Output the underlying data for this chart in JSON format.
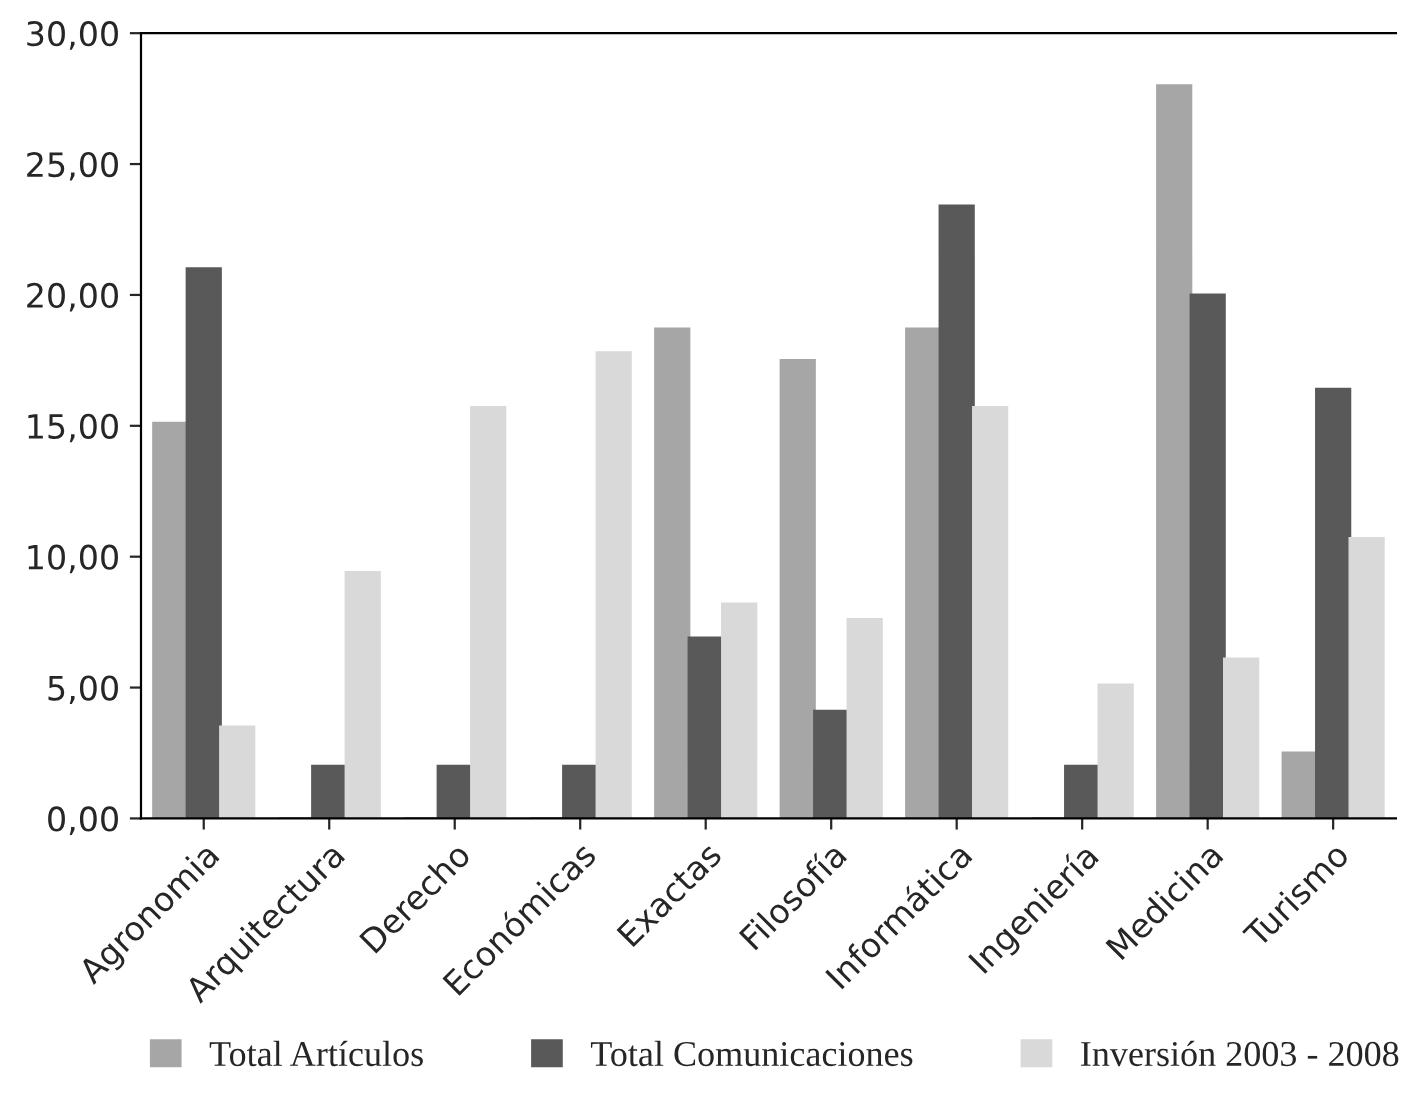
{
  "chart_data": {
    "type": "bar",
    "categories": [
      "Agronomia",
      "Arquitectura",
      "Derecho",
      "Económicas",
      "Exactas",
      "Filosofía",
      "Informática",
      "Ingeniería",
      "Medicina",
      "Turismo"
    ],
    "series": [
      {
        "name": "Total Artículos",
        "color": "#a6a6a6",
        "values": [
          15.1,
          0,
          0,
          0,
          18.7,
          17.5,
          18.7,
          0,
          28.0,
          2.5
        ]
      },
      {
        "name": "Total Comunicaciones",
        "color": "#595959",
        "values": [
          21.0,
          2.0,
          2.0,
          2.0,
          6.9,
          4.1,
          23.4,
          2.0,
          20.0,
          16.4
        ]
      },
      {
        "name": "Inversión 2003 - 2008",
        "color": "#d9d9d9",
        "values": [
          3.5,
          9.4,
          15.7,
          17.8,
          8.2,
          7.6,
          15.7,
          5.1,
          6.1,
          10.7
        ]
      }
    ],
    "ylim": [
      0,
      30
    ],
    "yticks": [
      {
        "value": 0,
        "label": "0,00"
      },
      {
        "value": 5,
        "label": "5,00"
      },
      {
        "value": 10,
        "label": "10,00"
      },
      {
        "value": 15,
        "label": "15,00"
      },
      {
        "value": 20,
        "label": "20,00"
      },
      {
        "value": 25,
        "label": "25,00"
      },
      {
        "value": 30,
        "label": "30,00"
      }
    ],
    "grid": false,
    "legend": "bottom"
  }
}
